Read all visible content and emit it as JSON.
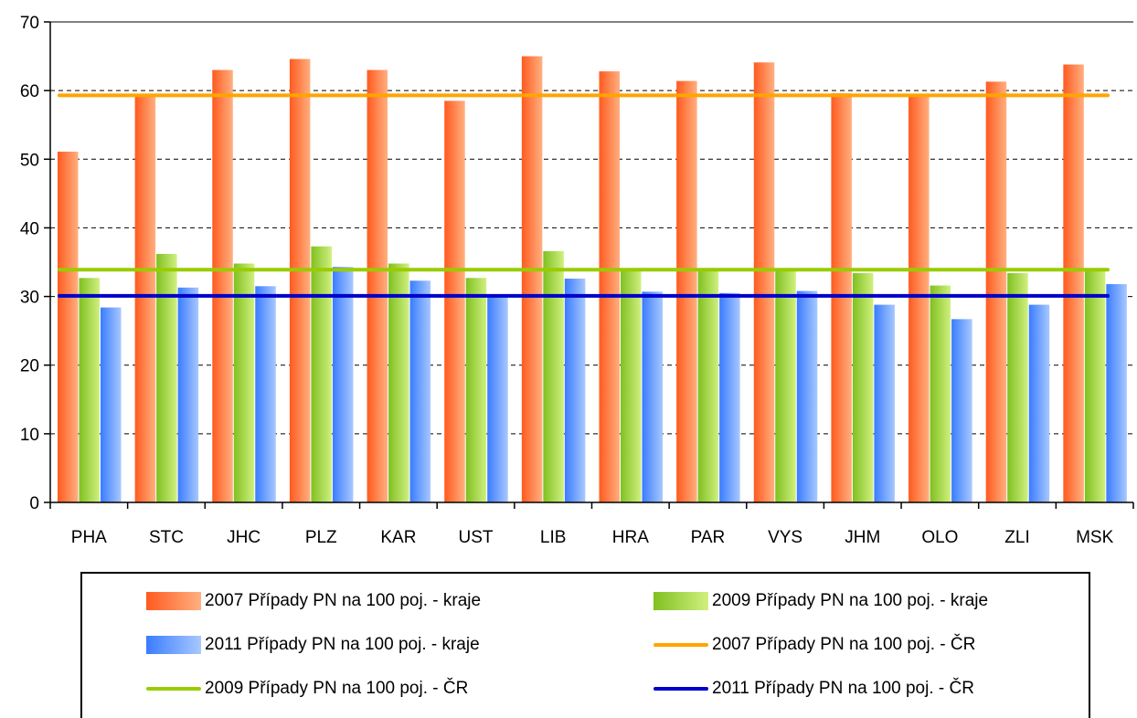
{
  "chart_data": {
    "type": "bar",
    "categories": [
      "PHA",
      "STC",
      "JHC",
      "PLZ",
      "KAR",
      "UST",
      "LIB",
      "HRA",
      "PAR",
      "VYS",
      "JHM",
      "OLO",
      "ZLI",
      "MSK"
    ],
    "series": [
      {
        "name": "2007 Případy PN na 100 poj. - kraje",
        "values": [
          51.1,
          59.4,
          63.0,
          64.6,
          63.0,
          58.5,
          65.0,
          62.8,
          61.4,
          64.1,
          59.6,
          59.3,
          61.3,
          63.8
        ]
      },
      {
        "name": "2009 Případy PN na 100 poj. - kraje",
        "values": [
          32.7,
          36.2,
          34.8,
          37.3,
          34.8,
          32.7,
          36.6,
          34.0,
          33.8,
          33.8,
          33.4,
          31.6,
          33.4,
          33.8
        ]
      },
      {
        "name": "2011 Případy PN na 100 poj. - kraje",
        "values": [
          28.4,
          31.3,
          31.5,
          34.3,
          32.3,
          30.2,
          32.6,
          30.7,
          30.5,
          30.8,
          28.8,
          26.7,
          28.8,
          31.8
        ]
      }
    ],
    "reference_lines": [
      {
        "name": "2007 Případy PN na 100 poj. - ČR",
        "value": 59.3,
        "color": "#ffa500"
      },
      {
        "name": "2009 Případy PN na 100 poj. - ČR",
        "value": 33.9,
        "color": "#99cc00"
      },
      {
        "name": "2011 Případy PN na 100 poj. - ČR",
        "value": 30.1,
        "color": "#0000cc"
      }
    ],
    "ylim": [
      0,
      70
    ],
    "yticks": [
      "0",
      "10",
      "20",
      "30",
      "40",
      "50",
      "60",
      "70"
    ],
    "grid": "dashed horizontal",
    "legend_position": "bottom",
    "colors": {
      "bar_2007": [
        "#ff5a1f",
        "#ffb080"
      ],
      "bar_2009": [
        "#80c020",
        "#d0f080"
      ],
      "bar_2011": [
        "#3a7cff",
        "#a8c8ff"
      ]
    }
  },
  "legend": {
    "items": [
      {
        "label": "2007 Případy PN na 100 poj. - kraje",
        "kind": "bar",
        "color": "#ff6a2a"
      },
      {
        "label": "2009 Případy PN na 100 poj. - kraje",
        "kind": "bar",
        "color": "#99cc33"
      },
      {
        "label": "2011 Případy PN na 100 poj. - kraje",
        "kind": "bar",
        "color": "#4a86ff"
      },
      {
        "label": "2007 Případy PN na 100 poj. - ČR",
        "kind": "line",
        "color": "#ffa500"
      },
      {
        "label": "2009 Případy PN na 100 poj. - ČR",
        "kind": "line",
        "color": "#99cc00"
      },
      {
        "label": "2011 Případy PN na 100 poj. - ČR",
        "kind": "line",
        "color": "#0000cc"
      }
    ]
  }
}
